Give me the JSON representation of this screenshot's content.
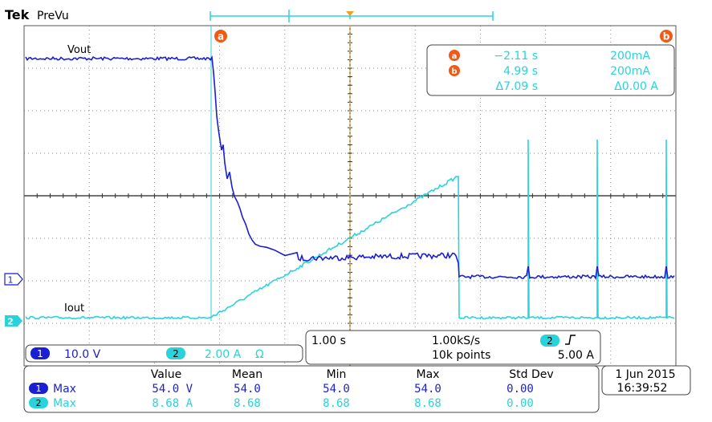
{
  "header": {
    "brand": "Tek",
    "mode": "PreVu"
  },
  "colors": {
    "ch1": "#1a1fd2",
    "ch2": "#2ad3dc",
    "cursor": "#f05a14",
    "trigger": "#f2a020",
    "grid": "#777777"
  },
  "traces": {
    "ch1_label": "Vout",
    "ch2_label": "Iout"
  },
  "markers": {
    "cursor_a": "a",
    "cursor_b": "b",
    "ch1_marker": "1",
    "ch2_marker": "2"
  },
  "cursor_readout": {
    "a_time": "−2.11 s",
    "a_value": "200mA",
    "b_time": "4.99 s",
    "b_value": "200mA",
    "delta_time": "Δ7.09 s",
    "delta_value": "Δ0.00 A"
  },
  "channel_settings": {
    "ch1_num": "1",
    "ch1_scale": "10.0 V",
    "ch2_num": "2",
    "ch2_scale": "2.00 A",
    "ch2_icon": "omega-icon",
    "ch2_icon_glyph": "Ω"
  },
  "timebase": {
    "time_per_div": "1.00 s",
    "sample_rate": "1.00kS/s",
    "points": "10k points",
    "trigger_channel": "2",
    "trigger_icon": "rising-edge-icon",
    "trigger_level": "5.00 A"
  },
  "measurements": {
    "headers": [
      "Value",
      "Mean",
      "Min",
      "Max",
      "Std Dev"
    ],
    "rows": [
      {
        "channel": "1",
        "type": "Max",
        "value": "54.0 V",
        "mean": "54.0",
        "min": "54.0",
        "max": "54.0",
        "std": "0.00"
      },
      {
        "channel": "2",
        "type": "Max",
        "value": "8.68 A",
        "mean": "8.68",
        "min": "8.68",
        "max": "8.68",
        "std": "0.00"
      }
    ]
  },
  "datetime": {
    "date": "1 Jun 2015",
    "time": "16:39:52"
  }
}
